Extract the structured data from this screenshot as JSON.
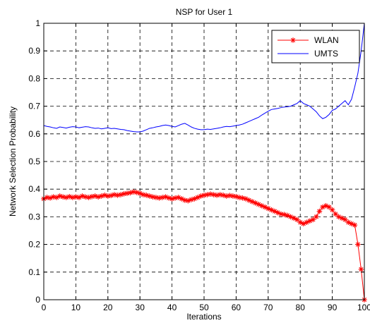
{
  "chart_data": {
    "type": "line",
    "title": "NSP for User 1",
    "xlabel": "Iterations",
    "ylabel": "Network Selection Probability",
    "xlim": [
      0,
      100
    ],
    "ylim": [
      0,
      1
    ],
    "xticks": [
      "0",
      "10",
      "20",
      "30",
      "40",
      "50",
      "60",
      "70",
      "80",
      "90",
      "100"
    ],
    "yticks": [
      "0",
      "0.1",
      "0.2",
      "0.3",
      "0.4",
      "0.5",
      "0.6",
      "0.7",
      "0.8",
      "0.9",
      "1"
    ],
    "grid": true,
    "legend_position": "top-right",
    "series": [
      {
        "name": "WLAN",
        "color": "#ff0000",
        "marker": "asterisk",
        "x": [
          0,
          1,
          2,
          3,
          4,
          5,
          6,
          7,
          8,
          9,
          10,
          11,
          12,
          13,
          14,
          15,
          16,
          17,
          18,
          19,
          20,
          21,
          22,
          23,
          24,
          25,
          26,
          27,
          28,
          29,
          30,
          31,
          32,
          33,
          34,
          35,
          36,
          37,
          38,
          39,
          40,
          41,
          42,
          43,
          44,
          45,
          46,
          47,
          48,
          49,
          50,
          51,
          52,
          53,
          54,
          55,
          56,
          57,
          58,
          59,
          60,
          61,
          62,
          63,
          64,
          65,
          66,
          67,
          68,
          69,
          70,
          71,
          72,
          73,
          74,
          75,
          76,
          77,
          78,
          79,
          80,
          81,
          82,
          83,
          84,
          85,
          86,
          87,
          88,
          89,
          90,
          91,
          92,
          93,
          94,
          95,
          96,
          97,
          98,
          99,
          100
        ],
        "y": [
          0.365,
          0.37,
          0.368,
          0.372,
          0.37,
          0.375,
          0.372,
          0.37,
          0.373,
          0.37,
          0.372,
          0.37,
          0.375,
          0.372,
          0.37,
          0.373,
          0.375,
          0.372,
          0.375,
          0.378,
          0.375,
          0.377,
          0.38,
          0.378,
          0.38,
          0.383,
          0.385,
          0.387,
          0.39,
          0.388,
          0.385,
          0.38,
          0.378,
          0.375,
          0.372,
          0.37,
          0.368,
          0.37,
          0.372,
          0.368,
          0.365,
          0.368,
          0.37,
          0.365,
          0.36,
          0.358,
          0.362,
          0.365,
          0.37,
          0.375,
          0.378,
          0.38,
          0.382,
          0.38,
          0.378,
          0.38,
          0.378,
          0.375,
          0.377,
          0.375,
          0.373,
          0.37,
          0.368,
          0.365,
          0.36,
          0.355,
          0.35,
          0.345,
          0.34,
          0.335,
          0.33,
          0.325,
          0.32,
          0.315,
          0.31,
          0.308,
          0.305,
          0.3,
          0.295,
          0.29,
          0.28,
          0.275,
          0.28,
          0.285,
          0.29,
          0.3,
          0.32,
          0.335,
          0.34,
          0.335,
          0.325,
          0.31,
          0.3,
          0.295,
          0.29,
          0.28,
          0.275,
          0.27,
          0.2,
          0.11,
          0.0
        ]
      },
      {
        "name": "UMTS",
        "color": "#0000ff",
        "marker": "none",
        "x": [
          0,
          1,
          2,
          3,
          4,
          5,
          6,
          7,
          8,
          9,
          10,
          11,
          12,
          13,
          14,
          15,
          16,
          17,
          18,
          19,
          20,
          21,
          22,
          23,
          24,
          25,
          26,
          27,
          28,
          29,
          30,
          31,
          32,
          33,
          34,
          35,
          36,
          37,
          38,
          39,
          40,
          41,
          42,
          43,
          44,
          45,
          46,
          47,
          48,
          49,
          50,
          51,
          52,
          53,
          54,
          55,
          56,
          57,
          58,
          59,
          60,
          61,
          62,
          63,
          64,
          65,
          66,
          67,
          68,
          69,
          70,
          71,
          72,
          73,
          74,
          75,
          76,
          77,
          78,
          79,
          80,
          81,
          82,
          83,
          84,
          85,
          86,
          87,
          88,
          89,
          90,
          91,
          92,
          93,
          94,
          95,
          96,
          97,
          98,
          99,
          100
        ],
        "y": [
          0.63,
          0.627,
          0.625,
          0.622,
          0.62,
          0.625,
          0.623,
          0.621,
          0.624,
          0.626,
          0.625,
          0.622,
          0.624,
          0.626,
          0.625,
          0.622,
          0.62,
          0.621,
          0.618,
          0.62,
          0.622,
          0.619,
          0.62,
          0.618,
          0.616,
          0.615,
          0.612,
          0.61,
          0.608,
          0.607,
          0.607,
          0.61,
          0.615,
          0.62,
          0.622,
          0.625,
          0.627,
          0.63,
          0.632,
          0.63,
          0.627,
          0.625,
          0.63,
          0.635,
          0.638,
          0.632,
          0.625,
          0.62,
          0.617,
          0.615,
          0.615,
          0.617,
          0.616,
          0.618,
          0.62,
          0.622,
          0.625,
          0.627,
          0.626,
          0.628,
          0.63,
          0.632,
          0.635,
          0.64,
          0.645,
          0.65,
          0.655,
          0.66,
          0.668,
          0.675,
          0.682,
          0.688,
          0.69,
          0.692,
          0.695,
          0.697,
          0.698,
          0.7,
          0.705,
          0.71,
          0.72,
          0.71,
          0.705,
          0.7,
          0.69,
          0.68,
          0.665,
          0.655,
          0.66,
          0.67,
          0.685,
          0.69,
          0.7,
          0.71,
          0.72,
          0.705,
          0.725,
          0.77,
          0.82,
          0.9,
          1.0
        ]
      }
    ]
  }
}
